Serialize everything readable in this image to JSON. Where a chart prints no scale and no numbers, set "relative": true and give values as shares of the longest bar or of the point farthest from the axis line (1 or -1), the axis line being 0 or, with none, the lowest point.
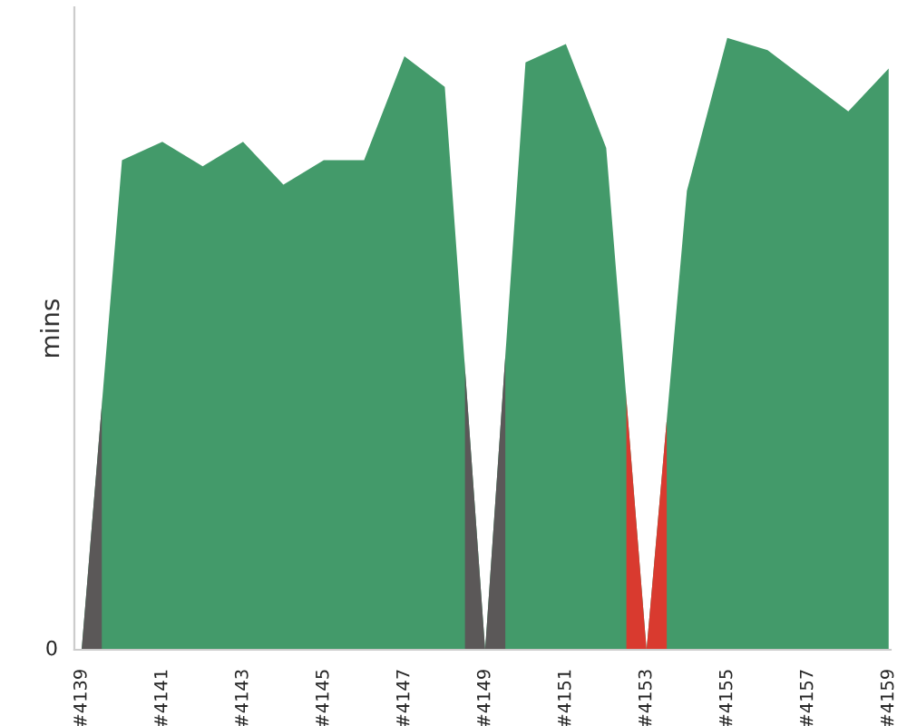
{
  "chart_data": {
    "type": "area",
    "ylabel": "mins",
    "relative": true,
    "annotations": [
      "0"
    ],
    "categories": [
      "#4139",
      null,
      "#4141",
      null,
      "#4143",
      null,
      "#4145",
      null,
      "#4147",
      null,
      "#4149",
      null,
      "#4151",
      null,
      "#4153",
      null,
      "#4155",
      null,
      "#4157",
      null,
      "#4159"
    ],
    "series": [
      {
        "values": [
          0,
          0.8,
          0.83,
          0.79,
          0.83,
          0.76,
          0.8,
          0.8,
          0.97,
          0.92,
          0,
          0.96,
          0.99,
          0.82,
          0,
          0.75,
          1,
          0.98,
          0.93,
          0.88,
          0.95
        ],
        "color": "#439a6a"
      }
    ],
    "bands": [
      {
        "axis": "x",
        "from": "#4139",
        "to": "#4139",
        "color": "#5b5858"
      },
      {
        "axis": "x",
        "from": "#4149",
        "to": "#4149",
        "color": "#5b5858"
      },
      {
        "axis": "x",
        "from": "#4153",
        "to": "#4153",
        "color": "#d93a2f"
      }
    ]
  }
}
